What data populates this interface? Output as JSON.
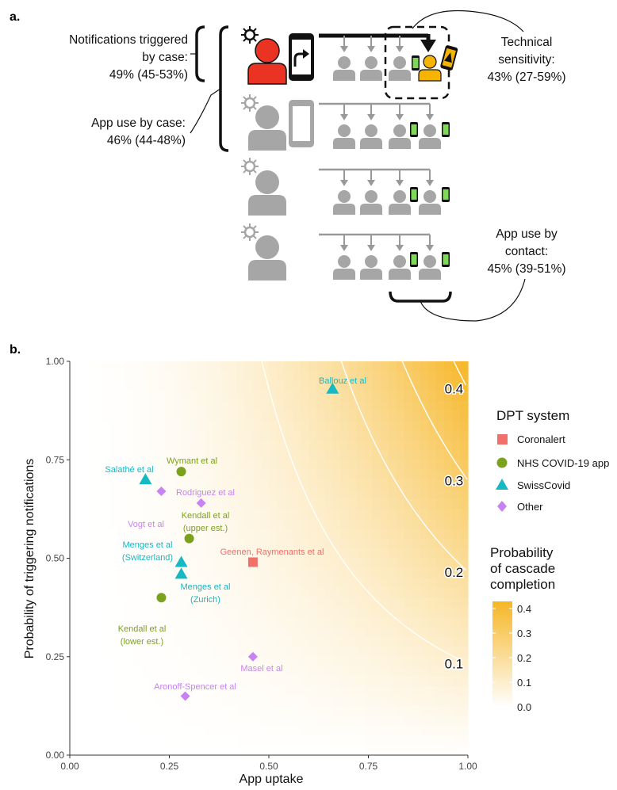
{
  "panel_a": {
    "label": "a.",
    "notifications": {
      "line1": "Notifications triggered",
      "line2": "by case:",
      "line3": "49% (45-53%)"
    },
    "app_use_case": {
      "line1": "App use by case:",
      "line2": "46% (44-48%)"
    },
    "tech_sens": {
      "line1": "Technical",
      "line2": "sensitivity:",
      "line3": "43% (27-59%)"
    },
    "app_use_contact": {
      "line1": "App use by",
      "line2": "contact:",
      "line3": "45% (39-51%)"
    }
  },
  "panel_b": {
    "label": "b.",
    "xlabel": "App uptake",
    "ylabel": "Probability of triggering notifications",
    "xticks": [
      "0.00",
      "0.25",
      "0.50",
      "0.75",
      "1.00"
    ],
    "yticks": [
      "0.00",
      "0.25",
      "0.50",
      "0.75",
      "1.00"
    ],
    "legend": {
      "title": "DPT system",
      "items": [
        {
          "label": "Coronalert",
          "color": "#f0706a",
          "shape": "square"
        },
        {
          "label": "NHS COVID-19 app",
          "color": "#7aa21e",
          "shape": "circle"
        },
        {
          "label": "SwissCovid",
          "color": "#16b8c3",
          "shape": "triangle"
        },
        {
          "label": "Other",
          "color": "#c783f2",
          "shape": "diamond"
        }
      ]
    },
    "colorbar": {
      "title1": "Probability",
      "title2": "of cascade",
      "title3": "completion",
      "ticks": [
        "0.4",
        "0.3",
        "0.2",
        "0.1",
        "0.0"
      ]
    }
  },
  "chart_data": {
    "type": "scatter",
    "xlabel": "App uptake",
    "ylabel": "Probability of triggering notifications",
    "xlim": [
      0,
      1
    ],
    "ylim": [
      0,
      1
    ],
    "background": "heatmap of probability of cascade completion (0 to 0.43), white to orange",
    "contours": [
      {
        "level": "0.1",
        "value": 0.1
      },
      {
        "level": "0.2",
        "value": 0.2
      },
      {
        "level": "0.3",
        "value": 0.3
      },
      {
        "level": "0.4",
        "value": 0.4
      }
    ],
    "points": [
      {
        "label": "Ballouz et al",
        "x": 0.66,
        "y": 0.93,
        "system": "SwissCovid"
      },
      {
        "label": "Wymant et al",
        "x": 0.28,
        "y": 0.72,
        "system": "NHS COVID-19 app"
      },
      {
        "label": "Salathé et al",
        "x": 0.19,
        "y": 0.7,
        "system": "SwissCovid"
      },
      {
        "label": "Vogt et al",
        "x": 0.23,
        "y": 0.67,
        "system": "Other"
      },
      {
        "label": "Rodriguez et al",
        "x": 0.33,
        "y": 0.64,
        "system": "Other"
      },
      {
        "label": "Kendall et al (upper est.)",
        "x": 0.3,
        "y": 0.55,
        "system": "NHS COVID-19 app"
      },
      {
        "label": "Menges et al (Switzerland)",
        "x": 0.28,
        "y": 0.49,
        "system": "SwissCovid"
      },
      {
        "label": "Geenen, Raymenants et al",
        "x": 0.46,
        "y": 0.49,
        "system": "Coronalert"
      },
      {
        "label": "Menges et al (Zurich)",
        "x": 0.28,
        "y": 0.46,
        "system": "SwissCovid"
      },
      {
        "label": "Kendall et al (lower est.)",
        "x": 0.23,
        "y": 0.4,
        "system": "NHS COVID-19 app"
      },
      {
        "label": "Masel et al",
        "x": 0.46,
        "y": 0.25,
        "system": "Other"
      },
      {
        "label": "Aronoff-Spencer et al",
        "x": 0.29,
        "y": 0.15,
        "system": "Other"
      }
    ]
  }
}
